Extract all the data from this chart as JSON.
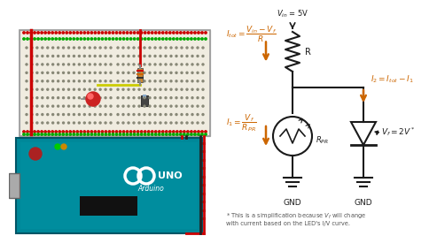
{
  "bg_color": "#ffffff",
  "circuit_color": "#1a1a1a",
  "orange_color": "#cc6600",
  "bb_color": "#f0ece0",
  "bb_border": "#cccccc",
  "arduino_color": "#008899",
  "arduino_border": "#005566",
  "usb_color": "#aaaaaa",
  "red_wire": "#cc0000",
  "black_wire": "#222222",
  "rail_red": "#cc0000",
  "rail_green": "#00aa00",
  "tie_color": "#888877",
  "resistor_color": "#cc8800",
  "led_color": "#cc2222",
  "pr_color": "#888888",
  "footnote_color": "#555555",
  "gnd_color": "#222222",
  "vin_text": "$V_{in}$ = 5V",
  "r_label": "R",
  "rpr_label": "$R_{PR}$",
  "vf_label": "$V_f = 2V^*$",
  "eq_itot": "$I_{tot} = \\dfrac{V_{in} - V_f}{R}$",
  "eq_i1": "$I_1 = \\dfrac{V_f}{R_{PR}}$",
  "eq_i2": "$I_2 = I_{tot} - I_1$",
  "gnd_label": "GND",
  "footnote_line1": "* This is a simplification because $V_f$ will change",
  "footnote_line2": "with current based on the LED's I/V curve."
}
